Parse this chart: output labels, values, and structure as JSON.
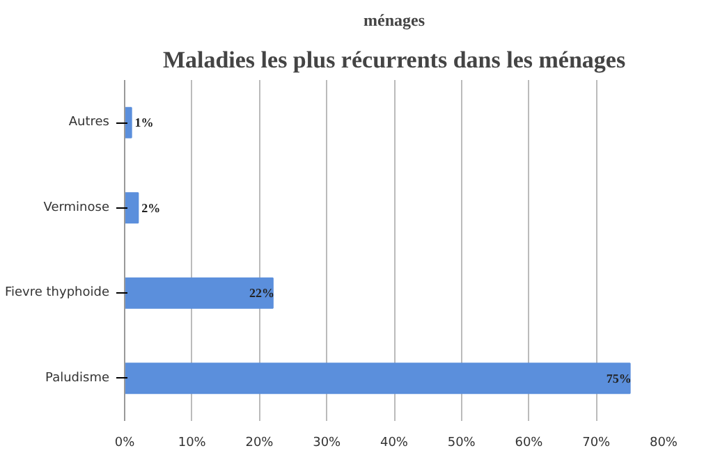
{
  "chart_data": {
    "type": "bar",
    "orientation": "horizontal",
    "title": "Maladies les plus récurrents dans les ménages",
    "annotations": [
      "ménages"
    ],
    "categories": [
      "Autres",
      "Verminose",
      "Fievre thyphoide",
      "Paludisme"
    ],
    "values": [
      1,
      2,
      22,
      75
    ],
    "value_labels": [
      "1%",
      "2%",
      "22%",
      "75%"
    ],
    "color": "#5b8fdc",
    "xlim": [
      0,
      80
    ],
    "xticks": [
      {
        "value": 0,
        "label": "0%"
      },
      {
        "value": 10,
        "label": "10%"
      },
      {
        "value": 20,
        "label": "20%"
      },
      {
        "value": 30,
        "label": "30%"
      },
      {
        "value": 40,
        "label": "40%"
      },
      {
        "value": 50,
        "label": "50%"
      },
      {
        "value": 60,
        "label": "60%"
      },
      {
        "value": 70,
        "label": "70%"
      },
      {
        "value": 80,
        "label": "80%"
      }
    ],
    "grid": "x"
  }
}
